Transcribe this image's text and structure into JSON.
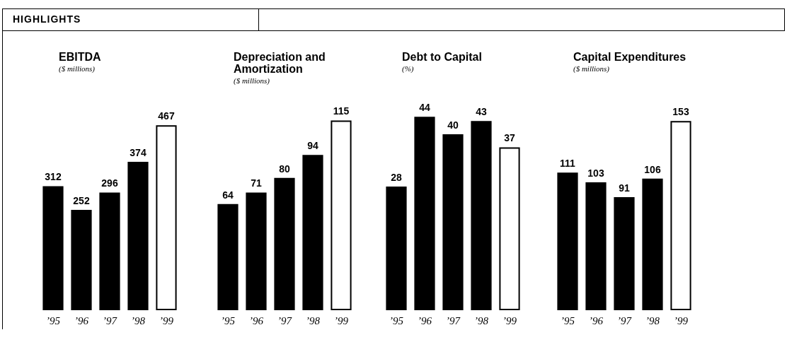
{
  "chart_data": [
    {
      "type": "bar",
      "title": "EBITDA",
      "subtitle": "($ millions)",
      "annotations": [
        "HIGHLIGHTS"
      ],
      "categories": [
        "’95",
        "’96",
        "’97",
        "’98",
        "’99"
      ],
      "values": [
        312,
        252,
        296,
        374,
        467
      ],
      "colors": [
        "#000000",
        "#000000",
        "#000000",
        "#000000",
        "#ffffff"
      ],
      "data_labels": true,
      "tick_labels": "x"
    },
    {
      "type": "bar",
      "title": "Depreciation and Amortization",
      "subtitle": "($ millions)",
      "categories": [
        "’95",
        "’96",
        "’97",
        "’98",
        "’99"
      ],
      "values": [
        64,
        71,
        80,
        94,
        115
      ],
      "colors": [
        "#000000",
        "#000000",
        "#000000",
        "#000000",
        "#ffffff"
      ],
      "data_labels": true,
      "tick_labels": "x"
    },
    {
      "type": "bar",
      "title": "Debt to Capital",
      "subtitle": "(%)",
      "categories": [
        "’95",
        "’96",
        "’97",
        "’98",
        "’99"
      ],
      "values": [
        28,
        44,
        40,
        43,
        37
      ],
      "colors": [
        "#000000",
        "#000000",
        "#000000",
        "#000000",
        "#ffffff"
      ],
      "data_labels": true,
      "tick_labels": "x"
    },
    {
      "type": "bar",
      "title": "Capital Expenditures",
      "subtitle": "($ millions)",
      "categories": [
        "’95",
        "’96",
        "’97",
        "’98",
        "’99"
      ],
      "values": [
        111,
        103,
        91,
        106,
        153
      ],
      "colors": [
        "#000000",
        "#000000",
        "#000000",
        "#000000",
        "#ffffff"
      ],
      "data_labels": true,
      "tick_labels": "x"
    }
  ]
}
